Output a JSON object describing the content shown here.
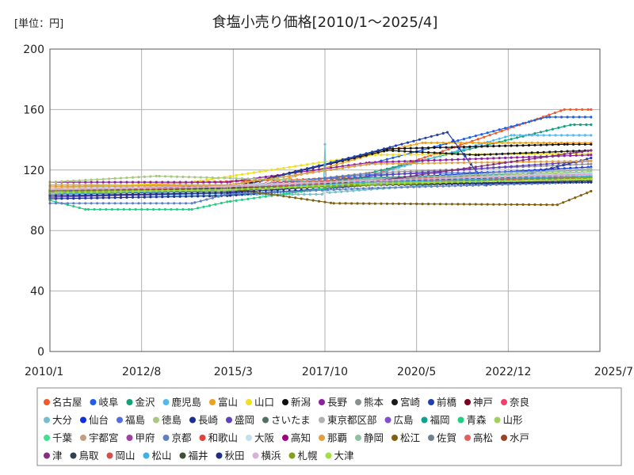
{
  "chart_data": {
    "type": "line",
    "title": "食塩小売り価格[2010/1～2025/4]",
    "unit_label": "[単位：円]",
    "xlabel": "",
    "ylabel": "",
    "x_range": [
      "2010-01",
      "2025-07"
    ],
    "x_ticks": [
      "2010/1",
      "2012/8",
      "2015/3",
      "2017/10",
      "2020/5",
      "2022/12",
      "2025/7"
    ],
    "ylim": [
      0,
      200
    ],
    "y_ticks": [
      0,
      40,
      80,
      120,
      160,
      200
    ],
    "grid": true,
    "legend_position": "bottom",
    "series": [
      {
        "name": "名古屋",
        "color": "#f05a28",
        "values": [
          [
            2010,
            108
          ],
          [
            2014.3,
            112
          ],
          [
            2018.9,
            115
          ],
          [
            2024.5,
            160
          ],
          [
            2025.25,
            160
          ]
        ]
      },
      {
        "name": "岐阜",
        "color": "#1f5fe0",
        "values": [
          [
            2010,
            106
          ],
          [
            2015,
            110
          ],
          [
            2019,
            124
          ],
          [
            2024,
            155
          ],
          [
            2025.25,
            155
          ]
        ]
      },
      {
        "name": "金沢",
        "color": "#19a07a",
        "values": [
          [
            2010,
            110
          ],
          [
            2016,
            110
          ],
          [
            2019,
            118
          ],
          [
            2024.7,
            150
          ],
          [
            2025.25,
            150
          ]
        ]
      },
      {
        "name": "鹿児島",
        "color": "#55b9f0",
        "values": [
          [
            2010,
            103
          ],
          [
            2016,
            105
          ],
          [
            2019,
            116
          ],
          [
            2023,
            143
          ],
          [
            2025.25,
            143
          ]
        ]
      },
      {
        "name": "富山",
        "color": "#f0a020",
        "values": [
          [
            2010,
            110
          ],
          [
            2016,
            110
          ],
          [
            2019.5,
            133
          ],
          [
            2020.5,
            138
          ],
          [
            2025.25,
            138
          ]
        ]
      },
      {
        "name": "山口",
        "color": "#f0e020",
        "values": [
          [
            2010,
            108
          ],
          [
            2014,
            112
          ],
          [
            2019,
            130
          ],
          [
            2025.25,
            131
          ]
        ]
      },
      {
        "name": "新潟",
        "color": "#111111",
        "values": [
          [
            2010,
            104
          ],
          [
            2015,
            108
          ],
          [
            2019.5,
            134
          ],
          [
            2024.5,
            137
          ],
          [
            2025.25,
            137
          ]
        ]
      },
      {
        "name": "長野",
        "color": "#8e1fa0",
        "values": [
          [
            2010,
            112
          ],
          [
            2015,
            112
          ],
          [
            2019,
            125
          ],
          [
            2025.25,
            130
          ]
        ]
      },
      {
        "name": "熊本",
        "color": "#8a9090",
        "values": [
          [
            2010,
            104
          ],
          [
            2015,
            108
          ],
          [
            2019,
            118
          ],
          [
            2025.25,
            124
          ]
        ]
      },
      {
        "name": "宮崎",
        "color": "#1a1a1a",
        "values": [
          [
            2010,
            105
          ],
          [
            2015,
            108
          ],
          [
            2019.5,
            133
          ],
          [
            2022,
            130
          ],
          [
            2025.25,
            133
          ]
        ]
      },
      {
        "name": "前橋",
        "color": "#2040b0",
        "values": [
          [
            2010,
            104
          ],
          [
            2015,
            107
          ],
          [
            2021.2,
            145
          ],
          [
            2022.3,
            110
          ],
          [
            2025.25,
            128
          ]
        ]
      },
      {
        "name": "神戸",
        "color": "#800020",
        "values": [
          [
            2010,
            105
          ],
          [
            2015,
            108
          ],
          [
            2019,
            113
          ],
          [
            2025.25,
            115
          ]
        ]
      },
      {
        "name": "奈良",
        "color": "#f04070",
        "values": [
          [
            2010,
            106
          ],
          [
            2015,
            108
          ],
          [
            2019,
            110
          ],
          [
            2025.25,
            118
          ]
        ]
      },
      {
        "name": "大分",
        "color": "#70c0d0",
        "values": [
          [
            2010,
            103
          ],
          [
            2017.7,
            104
          ],
          [
            2017.75,
            137
          ],
          [
            2017.8,
            105
          ],
          [
            2025.25,
            118
          ]
        ]
      },
      {
        "name": "仙台",
        "color": "#1030e0",
        "values": [
          [
            2010,
            107
          ],
          [
            2015,
            108
          ],
          [
            2019,
            114
          ],
          [
            2025.25,
            122
          ]
        ]
      },
      {
        "name": "福島",
        "color": "#5070e0",
        "values": [
          [
            2010,
            106
          ],
          [
            2015,
            109
          ],
          [
            2019,
            117
          ],
          [
            2025.25,
            120
          ]
        ]
      },
      {
        "name": "徳島",
        "color": "#a8c880",
        "values": [
          [
            2010,
            112
          ],
          [
            2013,
            116
          ],
          [
            2019,
            112
          ],
          [
            2025.25,
            114
          ]
        ]
      },
      {
        "name": "長崎",
        "color": "#1a3090",
        "values": [
          [
            2010,
            101
          ],
          [
            2015,
            103
          ],
          [
            2019,
            110
          ],
          [
            2025.25,
            112
          ]
        ]
      },
      {
        "name": "盛岡",
        "color": "#6040c0",
        "values": [
          [
            2010,
            102
          ],
          [
            2015,
            105
          ],
          [
            2019,
            116
          ],
          [
            2025.25,
            126
          ]
        ]
      },
      {
        "name": "さいたま",
        "color": "#507060",
        "values": [
          [
            2010,
            104
          ],
          [
            2015,
            106
          ],
          [
            2019,
            112
          ],
          [
            2025.25,
            114
          ]
        ]
      },
      {
        "name": "東京都区部",
        "color": "#b0b0b0",
        "values": [
          [
            2010,
            108
          ],
          [
            2015,
            110
          ],
          [
            2019,
            112
          ],
          [
            2025.25,
            121
          ]
        ]
      },
      {
        "name": "広島",
        "color": "#8050d0",
        "values": [
          [
            2010,
            107
          ],
          [
            2015,
            108
          ],
          [
            2019,
            113
          ],
          [
            2025.25,
            117
          ]
        ]
      },
      {
        "name": "福岡",
        "color": "#10a090",
        "values": [
          [
            2010,
            106
          ],
          [
            2015,
            108
          ],
          [
            2019,
            115
          ],
          [
            2025.25,
            118
          ]
        ]
      },
      {
        "name": "青森",
        "color": "#20d080",
        "values": [
          [
            2010,
            100
          ],
          [
            2011,
            94
          ],
          [
            2014,
            94
          ],
          [
            2015,
            99
          ],
          [
            2019,
            112
          ],
          [
            2025.25,
            114
          ]
        ]
      },
      {
        "name": "山形",
        "color": "#a0d060",
        "values": [
          [
            2010,
            105
          ],
          [
            2015,
            107
          ],
          [
            2019,
            113
          ],
          [
            2025.25,
            119
          ]
        ]
      },
      {
        "name": "千葉",
        "color": "#40e090",
        "values": [
          [
            2010,
            105
          ],
          [
            2015,
            108
          ],
          [
            2019,
            111
          ],
          [
            2025.25,
            116
          ]
        ]
      },
      {
        "name": "宇都宮",
        "color": "#c0a080",
        "values": [
          [
            2010,
            107
          ],
          [
            2015,
            109
          ],
          [
            2019,
            114
          ],
          [
            2025.25,
            118
          ]
        ]
      },
      {
        "name": "甲府",
        "color": "#a040a0",
        "values": [
          [
            2010,
            104
          ],
          [
            2015,
            107
          ],
          [
            2019,
            110
          ],
          [
            2025.25,
            113
          ]
        ]
      },
      {
        "name": "京都",
        "color": "#6080c0",
        "values": [
          [
            2010,
            98
          ],
          [
            2014,
            98
          ],
          [
            2015,
            104
          ],
          [
            2019,
            108
          ],
          [
            2025.25,
            112
          ]
        ]
      },
      {
        "name": "和歌山",
        "color": "#e04040",
        "values": [
          [
            2010,
            108
          ],
          [
            2015,
            110
          ],
          [
            2019,
            114
          ],
          [
            2025.25,
            117
          ]
        ]
      },
      {
        "name": "大阪",
        "color": "#c0e0f0",
        "values": [
          [
            2010,
            108
          ],
          [
            2015,
            110
          ],
          [
            2019,
            113
          ],
          [
            2025.25,
            118
          ]
        ]
      },
      {
        "name": "高知",
        "color": "#a00080",
        "values": [
          [
            2010,
            106
          ],
          [
            2015,
            108
          ],
          [
            2019,
            112
          ],
          [
            2025.25,
            116
          ]
        ]
      },
      {
        "name": "那覇",
        "color": "#e0a040",
        "values": [
          [
            2010,
            109
          ],
          [
            2015,
            110
          ],
          [
            2019,
            124
          ],
          [
            2025.25,
            126
          ]
        ]
      },
      {
        "name": "静岡",
        "color": "#90c0a0",
        "values": [
          [
            2010,
            106
          ],
          [
            2015,
            108
          ],
          [
            2019,
            114
          ],
          [
            2025.25,
            120
          ]
        ]
      },
      {
        "name": "松江",
        "color": "#806010",
        "values": [
          [
            2010,
            107
          ],
          [
            2015,
            108
          ],
          [
            2018,
            98
          ],
          [
            2024.3,
            97
          ],
          [
            2025.25,
            106
          ]
        ]
      },
      {
        "name": "佐賀",
        "color": "#708090",
        "values": [
          [
            2010,
            105
          ],
          [
            2015,
            107
          ],
          [
            2019,
            110
          ],
          [
            2025.25,
            115
          ]
        ]
      },
      {
        "name": "高松",
        "color": "#e06060",
        "values": [
          [
            2010,
            107
          ],
          [
            2015,
            109
          ],
          [
            2019,
            113
          ],
          [
            2025.25,
            117
          ]
        ]
      },
      {
        "name": "水戸",
        "color": "#a04020",
        "values": [
          [
            2010,
            106
          ],
          [
            2015,
            108
          ],
          [
            2019,
            111
          ],
          [
            2025.25,
            114
          ]
        ]
      },
      {
        "name": "津",
        "color": "#803080",
        "values": [
          [
            2010,
            106
          ],
          [
            2015,
            108
          ],
          [
            2019,
            112
          ],
          [
            2025.25,
            133
          ]
        ]
      },
      {
        "name": "鳥取",
        "color": "#304050",
        "values": [
          [
            2010,
            105
          ],
          [
            2015,
            107
          ],
          [
            2019,
            113
          ],
          [
            2025.25,
            116
          ]
        ]
      },
      {
        "name": "岡山",
        "color": "#d05050",
        "values": [
          [
            2010,
            107
          ],
          [
            2015,
            108
          ],
          [
            2019,
            112
          ],
          [
            2025.25,
            115
          ]
        ]
      },
      {
        "name": "松山",
        "color": "#40b0e0",
        "values": [
          [
            2010,
            104
          ],
          [
            2015,
            107
          ],
          [
            2019,
            112
          ],
          [
            2025.25,
            116
          ]
        ]
      },
      {
        "name": "福井",
        "color": "#405030",
        "values": [
          [
            2010,
            105
          ],
          [
            2015,
            108
          ],
          [
            2019,
            110
          ],
          [
            2025.25,
            113
          ]
        ]
      },
      {
        "name": "秋田",
        "color": "#203080",
        "values": [
          [
            2010,
            103
          ],
          [
            2015,
            105
          ],
          [
            2019,
            111
          ],
          [
            2025.25,
            112
          ]
        ]
      },
      {
        "name": "横浜",
        "color": "#d8b0d8",
        "values": [
          [
            2010,
            107
          ],
          [
            2015,
            109
          ],
          [
            2019,
            113
          ],
          [
            2025.25,
            117
          ]
        ]
      },
      {
        "name": "札幌",
        "color": "#80a020",
        "values": [
          [
            2010,
            106
          ],
          [
            2015,
            107
          ],
          [
            2019,
            110
          ],
          [
            2025.25,
            115
          ]
        ]
      },
      {
        "name": "大津",
        "color": "#a0e040",
        "values": [
          [
            2010,
            105
          ],
          [
            2015,
            107
          ],
          [
            2019,
            111
          ],
          [
            2025.25,
            114
          ]
        ]
      }
    ]
  }
}
